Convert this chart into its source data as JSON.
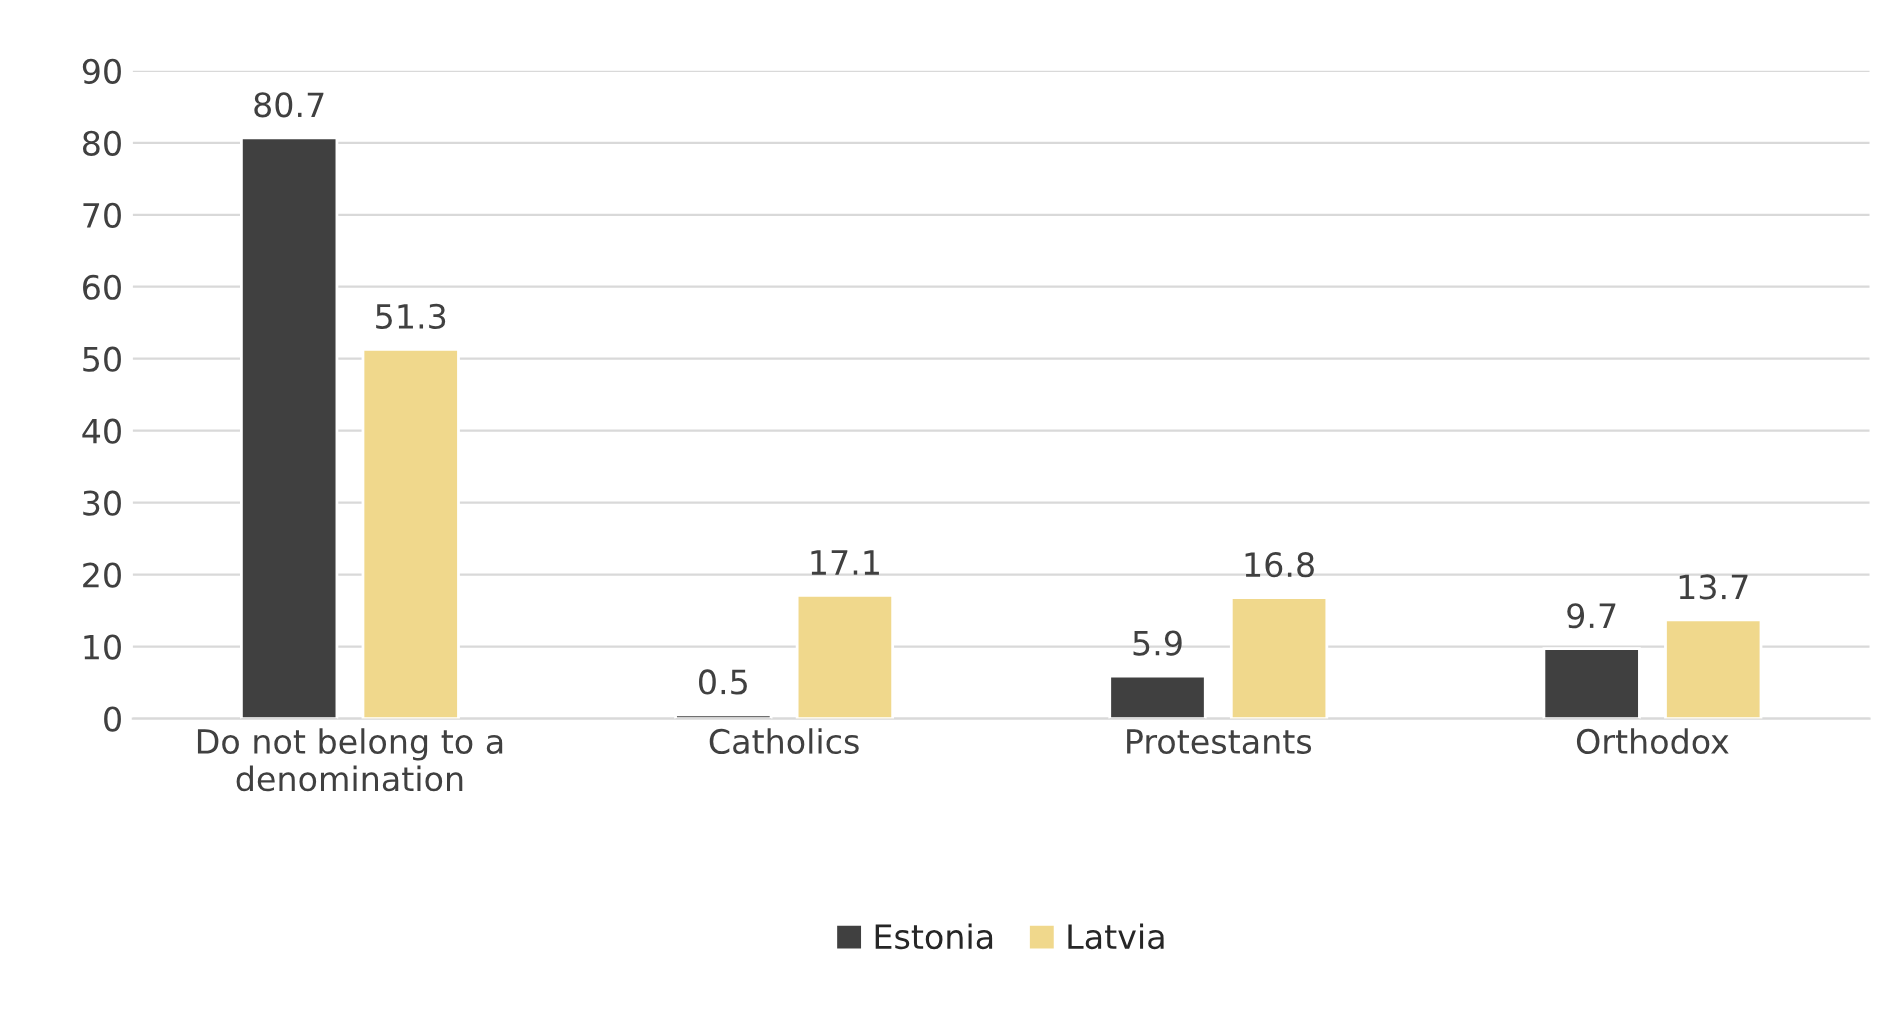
{
  "chart_data": {
    "type": "bar",
    "categories": [
      "Do not belong to a\ndenomination",
      "Catholics",
      "Protestants",
      "Orthodox"
    ],
    "series": [
      {
        "name": "Estonia",
        "color": "#404040",
        "values": [
          80.7,
          0.5,
          5.9,
          9.7
        ]
      },
      {
        "name": "Latvia",
        "color": "#f0d88c",
        "values": [
          51.3,
          17.1,
          16.8,
          13.7
        ]
      }
    ],
    "ylim": [
      0,
      90
    ],
    "yticks": [
      0,
      10,
      20,
      30,
      40,
      50,
      60,
      70,
      80,
      90
    ],
    "grid": "y",
    "legend": "bottom",
    "data_labels": true
  }
}
